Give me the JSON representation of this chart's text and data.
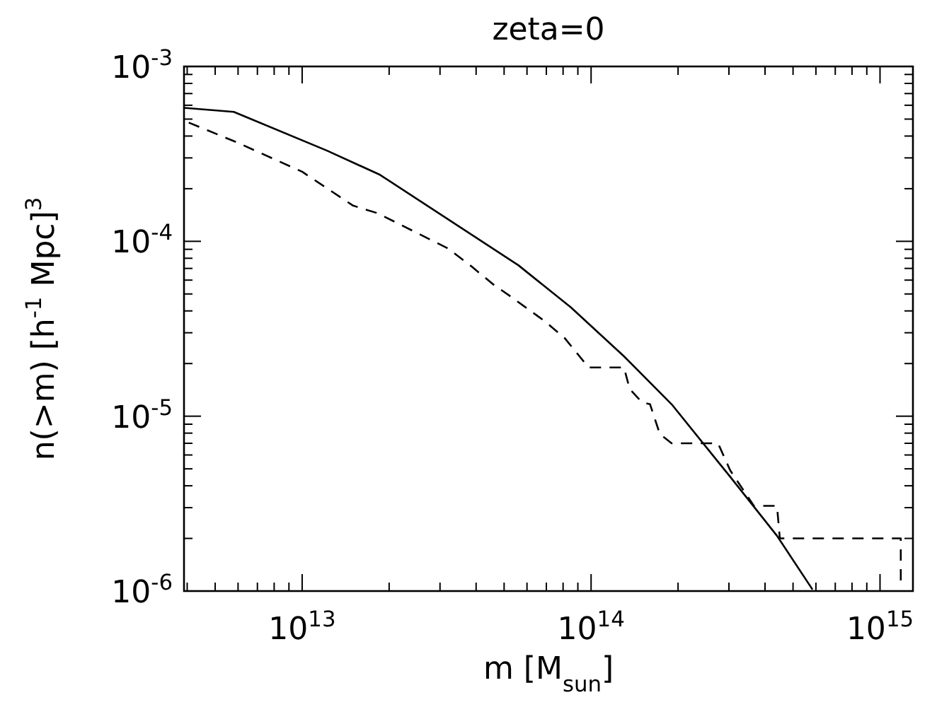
{
  "chart_data": {
    "type": "line",
    "title": "zeta=0",
    "xlabel": "m [M$_{sun}$]",
    "ylabel": "n(>m) [h$^{-1}$ Mpc]$^{3}$",
    "log": "xy",
    "grid": false,
    "xlim": [
      3900000000000.0,
      1300000000000000.0
    ],
    "ylim": [
      1e-06,
      0.001
    ],
    "xticks": [
      {
        "value": 4000000000000.0,
        "label": null
      },
      {
        "value": 5000000000000.0,
        "label": null
      },
      {
        "value": 6000000000000.0,
        "label": null
      },
      {
        "value": 7000000000000.0,
        "label": null
      },
      {
        "value": 8000000000000.0,
        "label": null
      },
      {
        "value": 9000000000000.0,
        "label": null
      },
      {
        "value": 10000000000000.0,
        "label": "10$^{13}$"
      },
      {
        "value": 20000000000000.0,
        "label": null
      },
      {
        "value": 30000000000000.0,
        "label": null
      },
      {
        "value": 40000000000000.0,
        "label": null
      },
      {
        "value": 50000000000000.0,
        "label": null
      },
      {
        "value": 60000000000000.0,
        "label": null
      },
      {
        "value": 70000000000000.0,
        "label": null
      },
      {
        "value": 80000000000000.0,
        "label": null
      },
      {
        "value": 90000000000000.0,
        "label": null
      },
      {
        "value": 100000000000000.0,
        "label": "10$^{14}$"
      },
      {
        "value": 200000000000000.0,
        "label": null
      },
      {
        "value": 300000000000000.0,
        "label": null
      },
      {
        "value": 400000000000000.0,
        "label": null
      },
      {
        "value": 500000000000000.0,
        "label": null
      },
      {
        "value": 600000000000000.0,
        "label": null
      },
      {
        "value": 700000000000000.0,
        "label": null
      },
      {
        "value": 800000000000000.0,
        "label": null
      },
      {
        "value": 900000000000000.0,
        "label": null
      },
      {
        "value": 1000000000000000.0,
        "label": "10$^{15}$"
      }
    ],
    "yticks": [
      {
        "value": 1e-06,
        "label": "10$^{-6}$"
      },
      {
        "value": 2e-06,
        "label": null
      },
      {
        "value": 3e-06,
        "label": null
      },
      {
        "value": 4e-06,
        "label": null
      },
      {
        "value": 5e-06,
        "label": null
      },
      {
        "value": 6e-06,
        "label": null
      },
      {
        "value": 7e-06,
        "label": null
      },
      {
        "value": 8e-06,
        "label": null
      },
      {
        "value": 9e-06,
        "label": null
      },
      {
        "value": 1e-05,
        "label": "10$^{-5}$"
      },
      {
        "value": 2e-05,
        "label": null
      },
      {
        "value": 3e-05,
        "label": null
      },
      {
        "value": 4e-05,
        "label": null
      },
      {
        "value": 5e-05,
        "label": null
      },
      {
        "value": 6e-05,
        "label": null
      },
      {
        "value": 7e-05,
        "label": null
      },
      {
        "value": 8e-05,
        "label": null
      },
      {
        "value": 9e-05,
        "label": null
      },
      {
        "value": 0.0001,
        "label": "10$^{-4}$"
      },
      {
        "value": 0.0002,
        "label": null
      },
      {
        "value": 0.0003,
        "label": null
      },
      {
        "value": 0.0004,
        "label": null
      },
      {
        "value": 0.0005,
        "label": null
      },
      {
        "value": 0.0006,
        "label": null
      },
      {
        "value": 0.0007,
        "label": null
      },
      {
        "value": 0.0008,
        "label": null
      },
      {
        "value": 0.0009,
        "label": null
      },
      {
        "value": 0.001,
        "label": "10$^{-3}$"
      }
    ],
    "series": [
      {
        "color": "#000000",
        "line_style": "solid",
        "x": [
          3900000000000.0,
          5800000000000.0,
          12200000000000.0,
          18600000000000.0,
          56000000000000.0,
          85000000000000.0,
          130000000000000.0,
          190000000000000.0,
          303000000000000.0,
          440000000000000.0,
          584000000000000.0
        ],
        "values": [
          0.00058,
          0.00055,
          0.00033,
          0.00024,
          7.3e-05,
          4.2e-05,
          2.2e-05,
          1.17e-05,
          4.5e-06,
          2.07e-06,
          1.02e-06
        ]
      },
      {
        "color": "#000000",
        "line_style": "dashed",
        "x": [
          3900000000000.0,
          5900000000000.0,
          10000000000000.0,
          15000000000000.0,
          18200000000000.0,
          32000000000000.0,
          38500000000000.0,
          46000000000000.0,
          53000000000000.0,
          69000000000000.0,
          81000000000000.0,
          98000000000000.0,
          130000000000000.0,
          136000000000000.0,
          150000000000000.0,
          160000000000000.0,
          173000000000000.0,
          190000000000000.0,
          275000000000000.0,
          303000000000000.0,
          366000000000000.0,
          440000000000000.0,
          450000000000000.0,
          1180000000000000.0,
          1180000000000000.0
        ],
        "values": [
          0.00049,
          0.00037,
          0.00025,
          0.00016,
          0.000145,
          9.1e-05,
          7.2e-05,
          5.65e-05,
          4.8e-05,
          3.5e-05,
          2.8e-05,
          1.9e-05,
          1.9e-05,
          1.43e-05,
          1.2e-05,
          1.17e-05,
          7.9e-06,
          7e-06,
          7e-06,
          4.9e-06,
          3.07e-06,
          3.07e-06,
          2e-06,
          2e-06,
          1.15e-06
        ]
      }
    ]
  }
}
